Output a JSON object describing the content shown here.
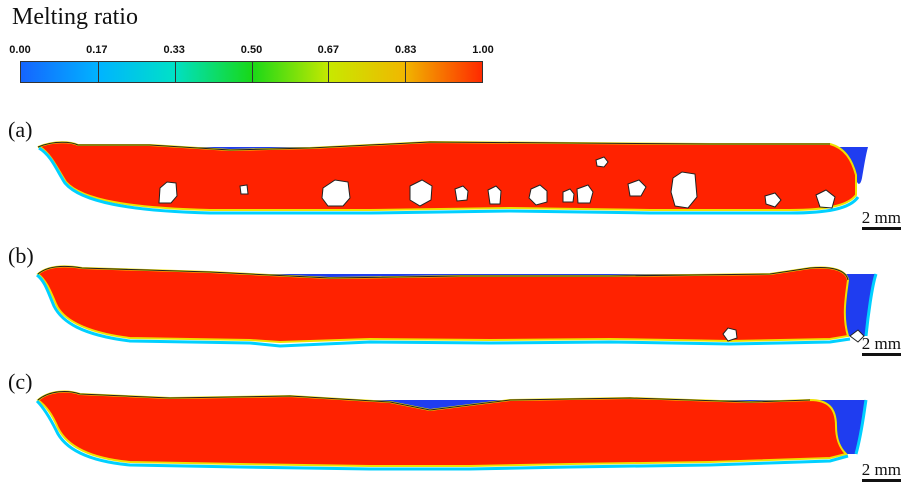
{
  "colorbar": {
    "title": "Melting ratio",
    "tick_labels": [
      "0.00",
      "0.17",
      "0.33",
      "0.50",
      "0.67",
      "0.83",
      "1.00"
    ],
    "colors": [
      "#1565ff",
      "#00b4ff",
      "#00e0c8",
      "#18d818",
      "#c8e800",
      "#f0b800",
      "#ff2a00"
    ]
  },
  "panels": [
    {
      "label": "(a)",
      "scale_bar": "2 mm"
    },
    {
      "label": "(b)",
      "scale_bar": "2 mm"
    },
    {
      "label": "(c)",
      "scale_bar": "2 mm"
    }
  ],
  "colors": {
    "solid": "#1f3df0",
    "melt": "#ff2200",
    "interface_outer": "#00d0ff",
    "interface_inner": "#f0e000",
    "void": "#ffffff"
  }
}
